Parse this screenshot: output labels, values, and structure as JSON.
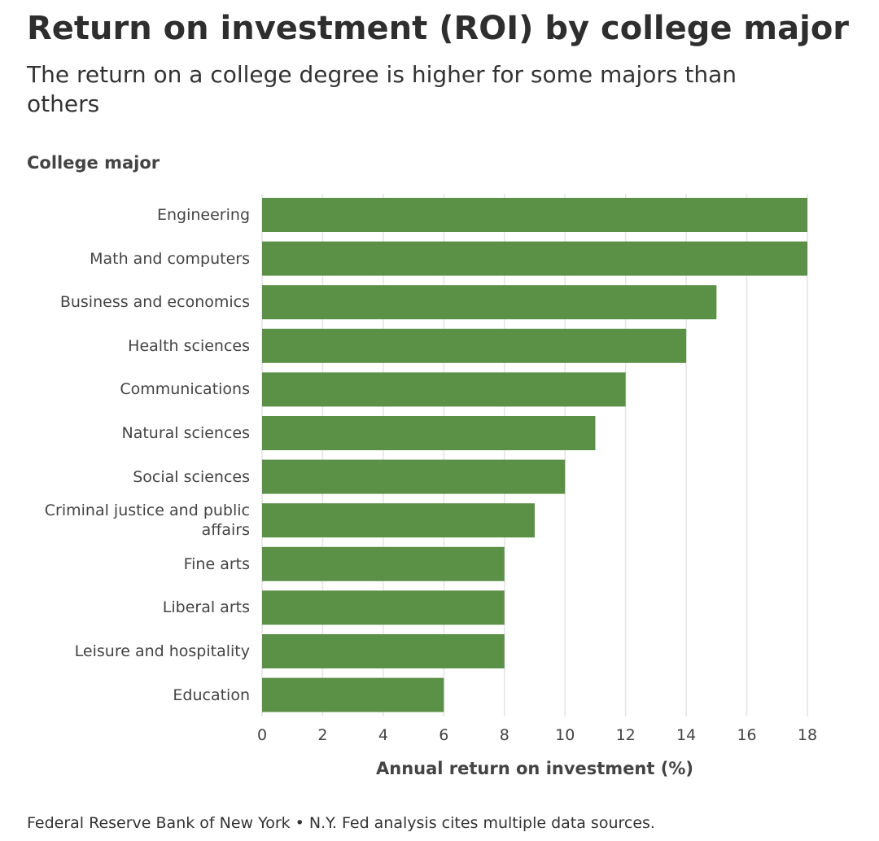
{
  "chart_data": {
    "type": "bar",
    "orientation": "horizontal",
    "title": "Return on investment (ROI) by college major",
    "subtitle": "The return on a college degree is higher for some majors than others",
    "y_axis_label": "College major",
    "x_axis_label": "Annual return on investment (%)",
    "source": "Federal Reserve Bank of New York • N.Y. Fed analysis cites multiple data sources.",
    "categories": [
      "Engineering",
      "Math and computers",
      "Business and economics",
      "Health sciences",
      "Communications",
      "Natural sciences",
      "Social sciences",
      "Criminal justice and public affairs",
      "Fine arts",
      "Liberal arts",
      "Leisure and hospitality",
      "Education"
    ],
    "values": [
      18,
      18,
      15,
      14,
      12,
      11,
      10,
      9,
      8,
      8,
      8,
      6
    ],
    "color": "#5b9146",
    "xlim": [
      0,
      18
    ],
    "xticks": [
      0,
      2,
      4,
      6,
      8,
      10,
      12,
      14,
      16,
      18
    ],
    "grid": true
  }
}
